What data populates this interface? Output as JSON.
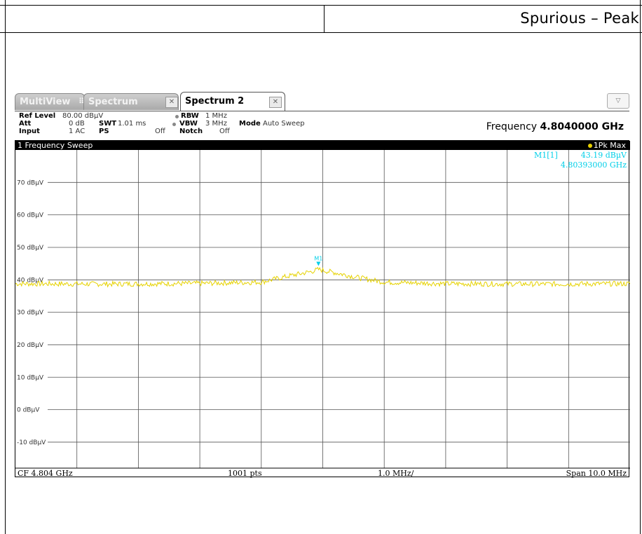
{
  "report": {
    "title": "Spurious – Peak"
  },
  "tabs": [
    {
      "label": "MultiView",
      "active": false
    },
    {
      "label": "Spectrum",
      "active": false
    },
    {
      "label": "Spectrum 2",
      "active": true
    }
  ],
  "params": {
    "ref_level_key": "Ref Level",
    "ref_level_val": "80.00 dBµV",
    "att_key": "Att",
    "att_val": "0 dB",
    "input_key": "Input",
    "input_val": "1 AC",
    "swt_key": "SWT",
    "swt_val": "1.01 ms",
    "ps_key": "PS",
    "ps_val": "Off",
    "rbw_key": "RBW",
    "rbw_val": "1 MHz",
    "vbw_key": "VBW",
    "vbw_val": "3 MHz",
    "notch_key": "Notch",
    "notch_val": "Off",
    "mode_key": "Mode",
    "mode_val": "Auto Sweep",
    "frequency_key": "Frequency",
    "frequency_val": "4.8040000 GHz"
  },
  "plot": {
    "title": "1 Frequency Sweep",
    "trace_label": "1Pk Max",
    "marker_table": {
      "name": "M1[1]",
      "level": "43.19 dBµV",
      "freq": "4.80393000 GHz"
    },
    "marker_label": "M1",
    "footer": {
      "cf": "CF 4.804 GHz",
      "pts": "1001 pts",
      "div": "1.0 MHz/",
      "span": "Span 10.0 MHz"
    },
    "y_tick_labels": [
      "70 dBµV",
      "60 dBµV",
      "50 dBµV",
      "40 dBµV",
      "30 dBµV",
      "20 dBµV",
      "10 dBµV",
      "0 dBµV",
      "-10 dBµV"
    ]
  },
  "chart_data": {
    "type": "line",
    "title": "1 Frequency Sweep",
    "xlabel": "",
    "ylabel": "",
    "x_range_ghz": [
      4.799,
      4.809
    ],
    "ylim": [
      -18,
      80
    ],
    "y_ticks": [
      70,
      60,
      50,
      40,
      30,
      20,
      10,
      0,
      -10
    ],
    "grid": true,
    "series": [
      {
        "name": "1Pk Max",
        "color": "#e6d200",
        "x": [
          4.799,
          4.8005,
          4.802,
          4.803,
          4.8034,
          4.8038,
          4.80393,
          4.8042,
          4.8046,
          4.805,
          4.806,
          4.8075,
          4.809
        ],
        "values": [
          38.8,
          38.7,
          38.9,
          39.3,
          41.0,
          42.5,
          43.19,
          42.2,
          40.6,
          39.3,
          38.8,
          38.7,
          38.8
        ]
      }
    ],
    "marker": {
      "name": "M1",
      "x": 4.80393,
      "y": 43.19
    }
  },
  "colors": {
    "trace": "#e6d200",
    "marker": "#00cfe8",
    "grid": "#555555"
  }
}
